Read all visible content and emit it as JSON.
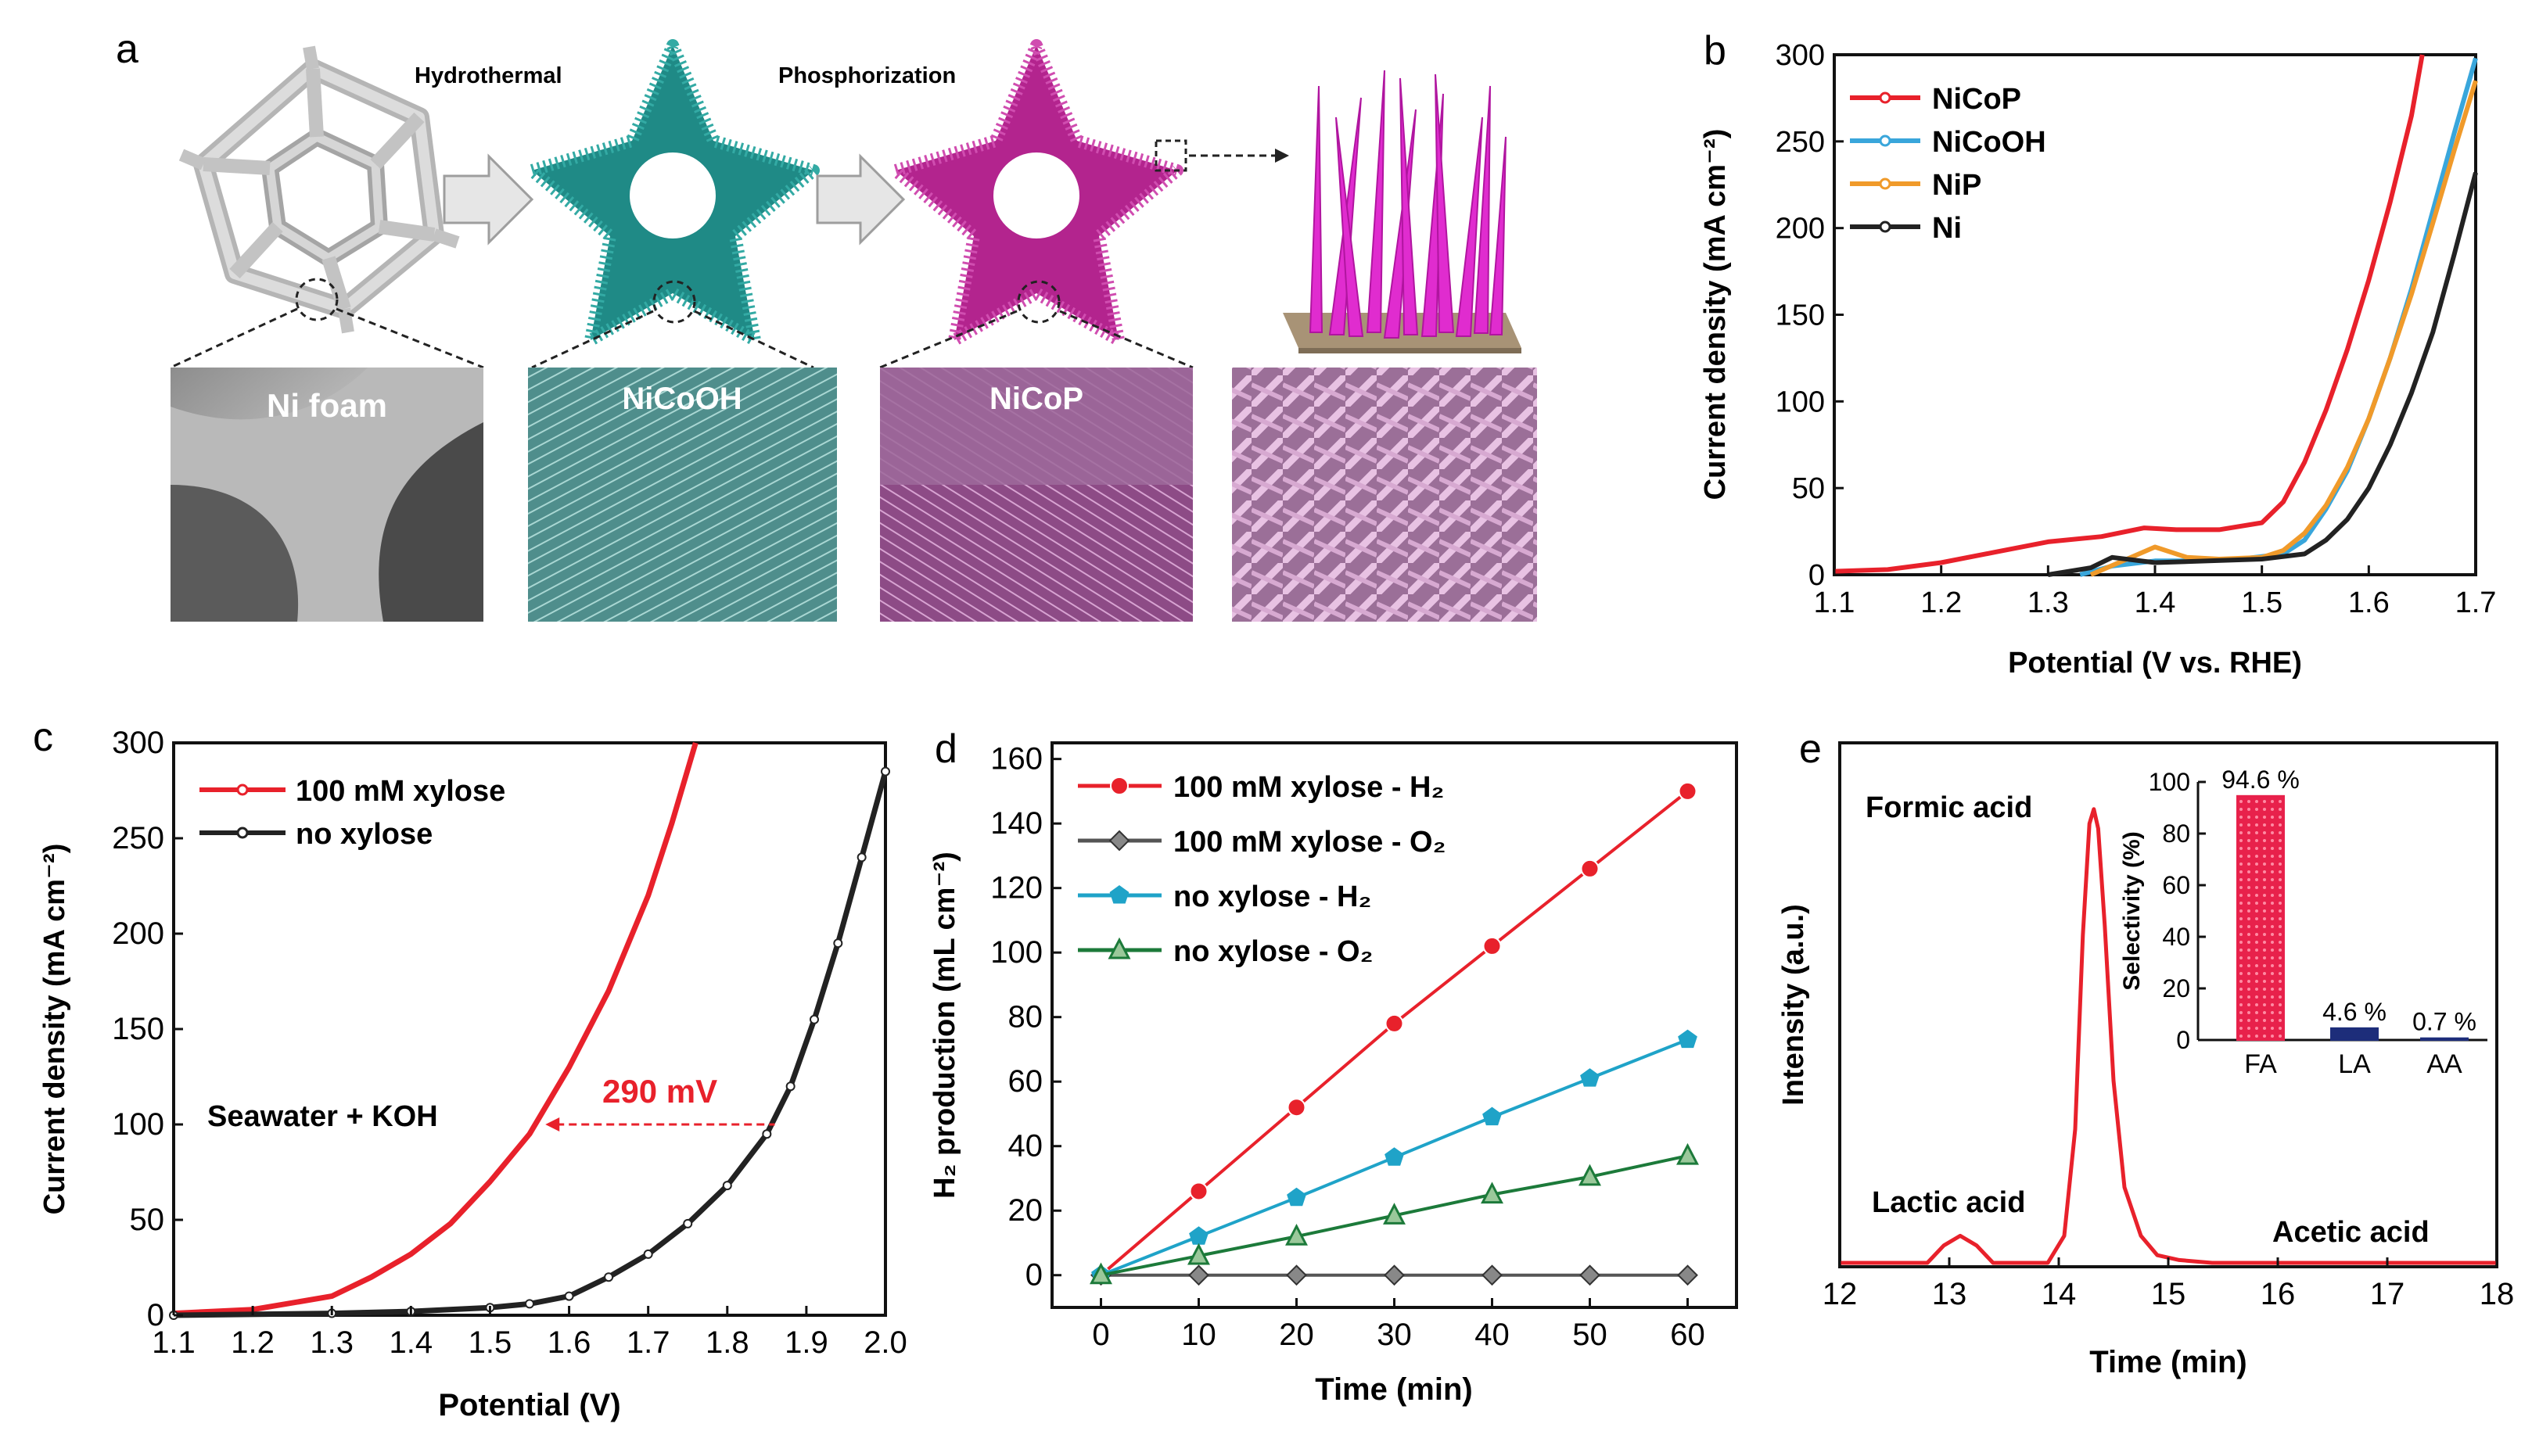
{
  "panel_letters": [
    "a",
    "b",
    "c",
    "d",
    "e"
  ],
  "schematic": {
    "arrow_labels": [
      "Hydrothermal",
      "Phosphorization"
    ],
    "sem_labels": [
      "Ni foam",
      "NiCoOH",
      "NiCoP"
    ],
    "colors": {
      "foam": "#c9c9c9",
      "nicooh": "#1f8a86",
      "nicop": "#b3248e",
      "needle": "#e02ccf",
      "substrate": "#a89376"
    }
  },
  "chart_data": [
    {
      "panel": "b",
      "type": "line",
      "title": "",
      "xlabel": "Potential (V vs. RHE)",
      "ylabel": "Current density (mA cm⁻²)",
      "xlim": [
        1.1,
        1.7
      ],
      "ylim": [
        0,
        300
      ],
      "xticks": [
        "1.1",
        "1.2",
        "1.3",
        "1.4",
        "1.5",
        "1.6",
        "1.7"
      ],
      "yticks": [
        "0",
        "50",
        "100",
        "150",
        "200",
        "250",
        "300"
      ],
      "legend_position": "top-left",
      "series": [
        {
          "name": "NiCoP",
          "color": "#e8212b",
          "x": [
            1.1,
            1.15,
            1.2,
            1.25,
            1.3,
            1.35,
            1.39,
            1.42,
            1.46,
            1.5,
            1.52,
            1.54,
            1.56,
            1.58,
            1.6,
            1.62,
            1.64,
            1.65
          ],
          "y": [
            2,
            3,
            7,
            13,
            19,
            22,
            27,
            26,
            26,
            30,
            42,
            65,
            95,
            130,
            170,
            215,
            265,
            300
          ]
        },
        {
          "name": "NiCoOH",
          "color": "#39a6db",
          "x": [
            1.33,
            1.36,
            1.4,
            1.44,
            1.48,
            1.52,
            1.54,
            1.56,
            1.58,
            1.6,
            1.62,
            1.64,
            1.66,
            1.68,
            1.7
          ],
          "y": [
            0,
            5,
            8,
            8,
            9,
            12,
            20,
            38,
            60,
            90,
            125,
            165,
            210,
            255,
            298
          ]
        },
        {
          "name": "NiP",
          "color": "#f09a2a",
          "x": [
            1.34,
            1.37,
            1.4,
            1.43,
            1.46,
            1.5,
            1.52,
            1.54,
            1.56,
            1.58,
            1.6,
            1.62,
            1.64,
            1.66,
            1.68,
            1.7
          ],
          "y": [
            0,
            8,
            16,
            10,
            9,
            10,
            14,
            24,
            40,
            62,
            90,
            125,
            162,
            203,
            245,
            285
          ]
        },
        {
          "name": "Ni",
          "color": "#222222",
          "x": [
            1.3,
            1.34,
            1.36,
            1.4,
            1.45,
            1.5,
            1.54,
            1.56,
            1.58,
            1.6,
            1.62,
            1.64,
            1.66,
            1.68,
            1.7
          ],
          "y": [
            0,
            4,
            10,
            7,
            8,
            9,
            12,
            20,
            32,
            50,
            75,
            105,
            140,
            185,
            232
          ]
        }
      ]
    },
    {
      "panel": "c",
      "type": "line",
      "title": "",
      "xlabel": "Potential (V)",
      "ylabel": "Current density (mA cm⁻²)",
      "xlim": [
        1.1,
        2.0
      ],
      "ylim": [
        0,
        300
      ],
      "xticks": [
        "1.1",
        "1.2",
        "1.3",
        "1.4",
        "1.5",
        "1.6",
        "1.7",
        "1.8",
        "1.9",
        "2.0"
      ],
      "yticks": [
        "0",
        "50",
        "100",
        "150",
        "200",
        "250",
        "300"
      ],
      "legend_position": "top-left",
      "annotations": [
        "Seawater + KOH",
        "290 mV"
      ],
      "annotation_level": 100,
      "annotation_x": [
        1.57,
        1.86
      ],
      "series": [
        {
          "name": "100 mM xylose",
          "color": "#e8212b",
          "x": [
            1.1,
            1.2,
            1.3,
            1.35,
            1.4,
            1.45,
            1.5,
            1.55,
            1.6,
            1.65,
            1.7,
            1.73,
            1.76
          ],
          "y": [
            1,
            3,
            10,
            20,
            32,
            48,
            70,
            95,
            130,
            170,
            220,
            258,
            300
          ]
        },
        {
          "name": "no xylose",
          "color": "#222222",
          "x": [
            1.1,
            1.3,
            1.4,
            1.5,
            1.55,
            1.6,
            1.65,
            1.7,
            1.75,
            1.8,
            1.85,
            1.88,
            1.91,
            1.94,
            1.97,
            2.0
          ],
          "y": [
            0,
            1,
            2,
            4,
            6,
            10,
            20,
            32,
            48,
            68,
            95,
            120,
            155,
            195,
            240,
            285
          ]
        }
      ]
    },
    {
      "panel": "d",
      "type": "line",
      "title": "",
      "xlabel": "Time (min)",
      "ylabel": "H₂ production (mL cm⁻²)",
      "xlim": [
        -5,
        65
      ],
      "ylim": [
        -10,
        165
      ],
      "xticks": [
        "0",
        "10",
        "20",
        "30",
        "40",
        "50",
        "60"
      ],
      "yticks": [
        "0",
        "20",
        "40",
        "60",
        "80",
        "100",
        "120",
        "140",
        "160"
      ],
      "legend_position": "top-left",
      "x": [
        0,
        10,
        20,
        30,
        40,
        50,
        60
      ],
      "series": [
        {
          "name": "100 mM xylose - H₂",
          "color": "#e8212b",
          "marker": "circle",
          "values": [
            0,
            26,
            52,
            78,
            102,
            126,
            150
          ]
        },
        {
          "name": "100 mM xylose - O₂",
          "color": "#555555",
          "marker": "diamond",
          "values": [
            0,
            0,
            0,
            0,
            0,
            0,
            0
          ]
        },
        {
          "name": "no xylose - H₂",
          "color": "#1fa3c8",
          "marker": "pentagon",
          "values": [
            0,
            12,
            24,
            36.5,
            49,
            61,
            73
          ]
        },
        {
          "name": "no xylose - O₂",
          "color": "#1c7a3a",
          "marker": "triangle",
          "values": [
            0,
            6,
            12,
            18.5,
            25,
            30.5,
            37
          ]
        }
      ]
    },
    {
      "panel": "e",
      "type": "line",
      "title": "",
      "xlabel": "Time (min)",
      "ylabel": "Intensity (a.u.)",
      "xlim": [
        12,
        18
      ],
      "ylim": [
        0,
        100
      ],
      "xticks": [
        "12",
        "13",
        "14",
        "15",
        "16",
        "17",
        "18"
      ],
      "peak_labels": [
        "Formic acid",
        "Lactic acid",
        "Acetic acid"
      ],
      "series": [
        {
          "name": "chromatogram",
          "color": "#e8212b",
          "x": [
            12.0,
            12.5,
            12.8,
            12.95,
            13.1,
            13.25,
            13.4,
            13.6,
            13.9,
            14.05,
            14.15,
            14.22,
            14.28,
            14.32,
            14.36,
            14.42,
            14.5,
            14.6,
            14.75,
            14.9,
            15.1,
            15.4,
            15.7,
            16.0,
            16.5,
            16.8,
            17.2,
            18.0
          ],
          "y": [
            1,
            1,
            2,
            6,
            8,
            6,
            2,
            1,
            2,
            8,
            30,
            70,
            93,
            96,
            92,
            72,
            40,
            18,
            8,
            4,
            3,
            2,
            1.5,
            1,
            1,
            1.5,
            0.5,
            0.5
          ]
        }
      ],
      "inset": {
        "type": "bar",
        "ylabel": "Selectivity (%)",
        "ylim": [
          0,
          100
        ],
        "yticks": [
          "0",
          "20",
          "40",
          "60",
          "80",
          "100"
        ],
        "categories": [
          "FA",
          "LA",
          "AA"
        ],
        "values": [
          94.6,
          4.6,
          0.7
        ],
        "value_labels": [
          "94.6 %",
          "4.6 %",
          "0.7 %"
        ],
        "colors": [
          "#e8214b",
          "#1d2d7a",
          "#1d2d7a"
        ]
      }
    }
  ]
}
